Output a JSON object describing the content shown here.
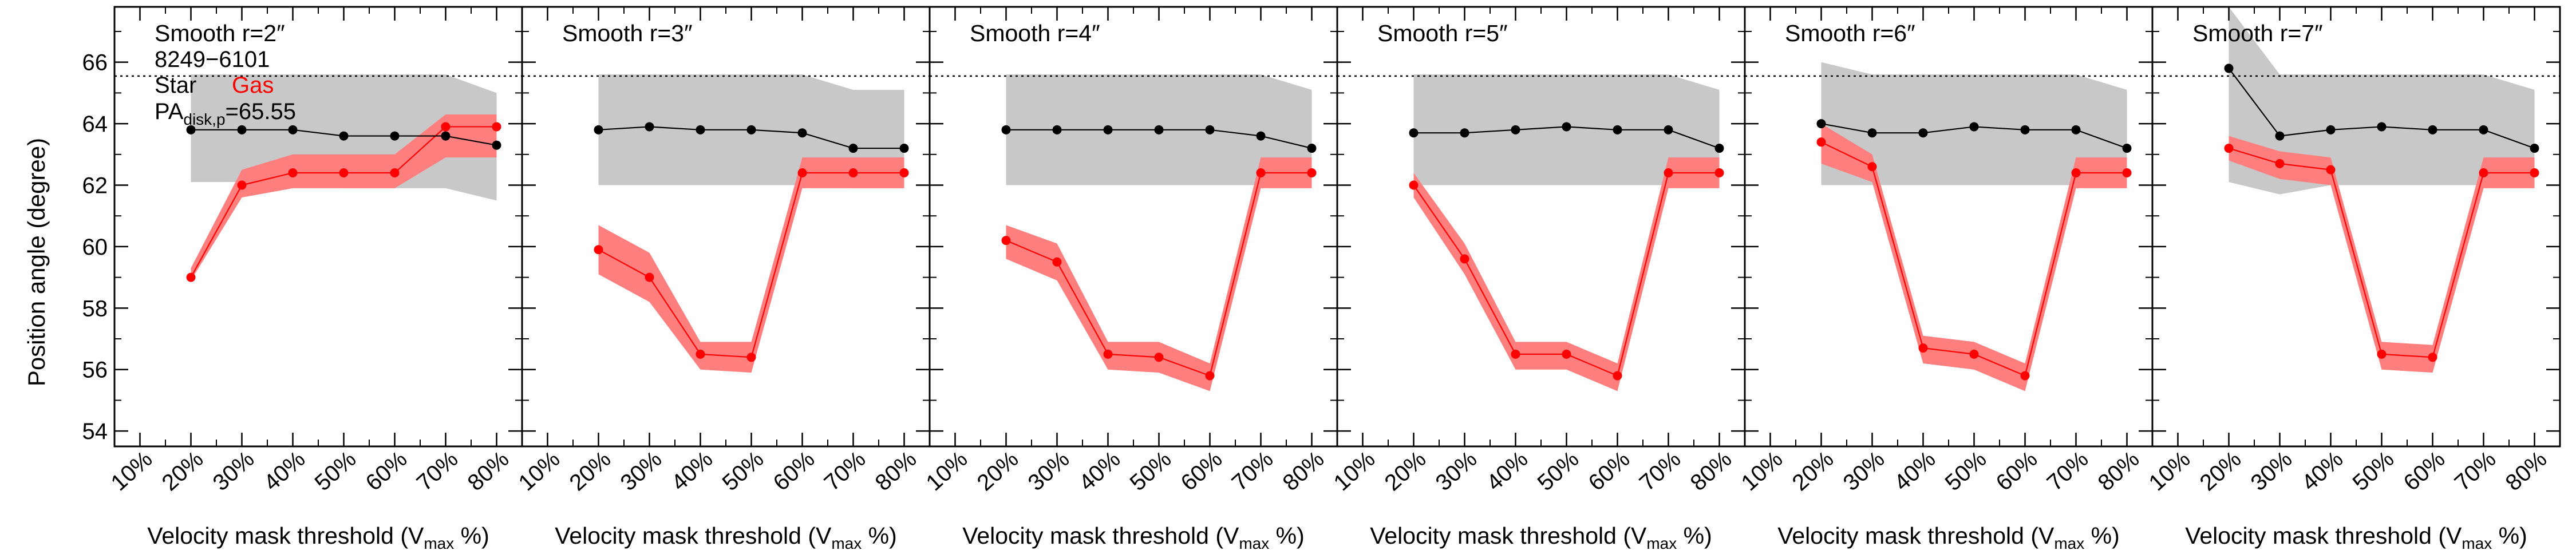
{
  "figure": {
    "ylabel": "Position angle (degree)",
    "legend": {
      "galaxy_id": "8249−6101",
      "star_label": "Star",
      "gas_label": "Gas",
      "pa_prefix": "PA",
      "pa_subscript": "disk,p",
      "pa_value": "=65.55"
    },
    "colors": {
      "star": "#000000",
      "gas": "#ff0000",
      "gas_band": "#ff7f7f",
      "star_band": "#c8c8c8",
      "axes": "#000000"
    }
  },
  "chart_data": [
    {
      "type": "line",
      "title": "Smooth r=2″",
      "xlabel_prefix": "Velocity mask threshold (V",
      "xlabel_sub": "max",
      "xlabel_suffix": " %)",
      "categories": [
        "10%",
        "20%",
        "30%",
        "40%",
        "50%",
        "60%",
        "70%",
        "80%"
      ],
      "ylim": [
        53.5,
        67.8
      ],
      "yticks": [
        54,
        56,
        58,
        60,
        62,
        64,
        66
      ],
      "reference_line": 65.55,
      "series": [
        {
          "name": "Star",
          "x": [
            20,
            30,
            40,
            50,
            60,
            70,
            80
          ],
          "values": [
            63.8,
            63.8,
            63.8,
            63.6,
            63.6,
            63.6,
            63.3
          ],
          "band_low": [
            62.1,
            62.1,
            62.1,
            61.9,
            61.9,
            61.9,
            61.5
          ],
          "band_high": [
            65.6,
            65.6,
            65.6,
            65.6,
            65.6,
            65.6,
            65.0
          ]
        },
        {
          "name": "Gas",
          "x": [
            20,
            30,
            40,
            50,
            60,
            70,
            80
          ],
          "values": [
            59.0,
            62.0,
            62.4,
            62.4,
            62.4,
            63.9,
            63.9
          ],
          "band_low": [
            58.9,
            61.6,
            61.9,
            61.9,
            61.9,
            62.9,
            62.9
          ],
          "band_high": [
            59.3,
            62.5,
            63.0,
            63.0,
            63.0,
            64.3,
            64.3
          ]
        }
      ]
    },
    {
      "type": "line",
      "title": "Smooth r=3″",
      "xlabel_prefix": "Velocity mask threshold (V",
      "xlabel_sub": "max",
      "xlabel_suffix": " %)",
      "categories": [
        "10%",
        "20%",
        "30%",
        "40%",
        "50%",
        "60%",
        "70%",
        "80%"
      ],
      "ylim": [
        53.5,
        67.8
      ],
      "yticks": [
        54,
        56,
        58,
        60,
        62,
        64,
        66
      ],
      "reference_line": 65.55,
      "series": [
        {
          "name": "Star",
          "x": [
            20,
            30,
            40,
            50,
            60,
            70,
            80
          ],
          "values": [
            63.8,
            63.9,
            63.8,
            63.8,
            63.7,
            63.2,
            63.2
          ],
          "band_low": [
            62.0,
            62.0,
            62.0,
            62.0,
            62.0,
            61.9,
            61.9
          ],
          "band_high": [
            65.6,
            65.6,
            65.6,
            65.6,
            65.6,
            65.1,
            65.1
          ]
        },
        {
          "name": "Gas",
          "x": [
            20,
            30,
            40,
            50,
            60,
            70,
            80
          ],
          "values": [
            59.9,
            59.0,
            56.5,
            56.4,
            62.4,
            62.4,
            62.4
          ],
          "band_low": [
            59.1,
            58.2,
            56.0,
            55.9,
            61.9,
            61.9,
            61.9
          ],
          "band_high": [
            60.7,
            59.8,
            56.9,
            56.9,
            62.9,
            62.9,
            62.9
          ]
        }
      ]
    },
    {
      "type": "line",
      "title": "Smooth r=4″",
      "xlabel_prefix": "Velocity mask threshold (V",
      "xlabel_sub": "max",
      "xlabel_suffix": " %)",
      "categories": [
        "10%",
        "20%",
        "30%",
        "40%",
        "50%",
        "60%",
        "70%",
        "80%"
      ],
      "ylim": [
        53.5,
        67.8
      ],
      "yticks": [
        54,
        56,
        58,
        60,
        62,
        64,
        66
      ],
      "reference_line": 65.55,
      "series": [
        {
          "name": "Star",
          "x": [
            20,
            30,
            40,
            50,
            60,
            70,
            80
          ],
          "values": [
            63.8,
            63.8,
            63.8,
            63.8,
            63.8,
            63.6,
            63.2
          ],
          "band_low": [
            62.0,
            62.0,
            62.0,
            62.0,
            62.0,
            62.0,
            61.9
          ],
          "band_high": [
            65.6,
            65.6,
            65.6,
            65.6,
            65.6,
            65.6,
            65.1
          ]
        },
        {
          "name": "Gas",
          "x": [
            20,
            30,
            40,
            50,
            60,
            70,
            80
          ],
          "values": [
            60.2,
            59.5,
            56.5,
            56.4,
            55.8,
            62.4,
            62.4
          ],
          "band_low": [
            59.6,
            58.9,
            56.0,
            55.9,
            55.3,
            61.9,
            61.9
          ],
          "band_high": [
            60.7,
            60.1,
            56.9,
            56.9,
            56.2,
            62.9,
            62.9
          ]
        }
      ]
    },
    {
      "type": "line",
      "title": "Smooth r=5″",
      "xlabel_prefix": "Velocity mask threshold (V",
      "xlabel_sub": "max",
      "xlabel_suffix": " %)",
      "categories": [
        "10%",
        "20%",
        "30%",
        "40%",
        "50%",
        "60%",
        "70%",
        "80%"
      ],
      "ylim": [
        53.5,
        67.8
      ],
      "yticks": [
        54,
        56,
        58,
        60,
        62,
        64,
        66
      ],
      "reference_line": 65.55,
      "series": [
        {
          "name": "Star",
          "x": [
            20,
            30,
            40,
            50,
            60,
            70,
            80
          ],
          "values": [
            63.7,
            63.7,
            63.8,
            63.9,
            63.8,
            63.8,
            63.2
          ],
          "band_low": [
            62.0,
            62.0,
            62.0,
            62.0,
            62.0,
            62.0,
            61.9
          ],
          "band_high": [
            65.6,
            65.6,
            65.6,
            65.6,
            65.6,
            65.6,
            65.1
          ]
        },
        {
          "name": "Gas",
          "x": [
            20,
            30,
            40,
            50,
            60,
            70,
            80
          ],
          "values": [
            62.0,
            59.6,
            56.5,
            56.5,
            55.8,
            62.4,
            62.4
          ],
          "band_low": [
            61.6,
            59.1,
            56.0,
            56.0,
            55.3,
            61.9,
            61.9
          ],
          "band_high": [
            62.4,
            60.1,
            56.9,
            56.9,
            56.2,
            62.9,
            62.9
          ]
        }
      ]
    },
    {
      "type": "line",
      "title": "Smooth r=6″",
      "xlabel_prefix": "Velocity mask threshold (V",
      "xlabel_sub": "max",
      "xlabel_suffix": " %)",
      "categories": [
        "10%",
        "20%",
        "30%",
        "40%",
        "50%",
        "60%",
        "70%",
        "80%"
      ],
      "ylim": [
        53.5,
        67.8
      ],
      "yticks": [
        54,
        56,
        58,
        60,
        62,
        64,
        66
      ],
      "reference_line": 65.55,
      "series": [
        {
          "name": "Star",
          "x": [
            20,
            30,
            40,
            50,
            60,
            70,
            80
          ],
          "values": [
            64.0,
            63.7,
            63.7,
            63.9,
            63.8,
            63.8,
            63.2
          ],
          "band_low": [
            62.0,
            62.0,
            62.0,
            62.0,
            62.0,
            62.0,
            61.9
          ],
          "band_high": [
            66.0,
            65.6,
            65.6,
            65.6,
            65.6,
            65.6,
            65.1
          ]
        },
        {
          "name": "Gas",
          "x": [
            20,
            30,
            40,
            50,
            60,
            70,
            80
          ],
          "values": [
            63.4,
            62.6,
            56.7,
            56.5,
            55.8,
            62.4,
            62.4
          ],
          "band_low": [
            62.7,
            62.1,
            56.2,
            56.0,
            55.3,
            61.9,
            61.9
          ],
          "band_high": [
            64.0,
            63.0,
            57.1,
            56.9,
            56.2,
            62.9,
            62.9
          ]
        }
      ]
    },
    {
      "type": "line",
      "title": "Smooth r=7″",
      "xlabel_prefix": "Velocity mask threshold (V",
      "xlabel_sub": "max",
      "xlabel_suffix": " %)",
      "categories": [
        "10%",
        "20%",
        "30%",
        "40%",
        "50%",
        "60%",
        "70%",
        "80%"
      ],
      "ylim": [
        53.5,
        67.8
      ],
      "yticks": [
        54,
        56,
        58,
        60,
        62,
        64,
        66
      ],
      "reference_line": 65.55,
      "series": [
        {
          "name": "Star",
          "x": [
            20,
            30,
            40,
            50,
            60,
            70,
            80
          ],
          "values": [
            65.8,
            63.6,
            63.8,
            63.9,
            63.8,
            63.8,
            63.2
          ],
          "band_low": [
            62.1,
            61.7,
            62.0,
            62.0,
            62.0,
            62.0,
            61.9
          ],
          "band_high": [
            67.8,
            65.6,
            65.6,
            65.6,
            65.6,
            65.6,
            65.1
          ]
        },
        {
          "name": "Gas",
          "x": [
            20,
            30,
            40,
            50,
            60,
            70,
            80
          ],
          "values": [
            63.2,
            62.7,
            62.5,
            56.5,
            56.4,
            62.4,
            62.4
          ],
          "band_low": [
            62.8,
            62.2,
            62.0,
            56.0,
            55.9,
            61.9,
            61.9
          ],
          "band_high": [
            63.6,
            63.1,
            62.9,
            56.9,
            56.8,
            62.9,
            62.9
          ]
        }
      ]
    }
  ]
}
